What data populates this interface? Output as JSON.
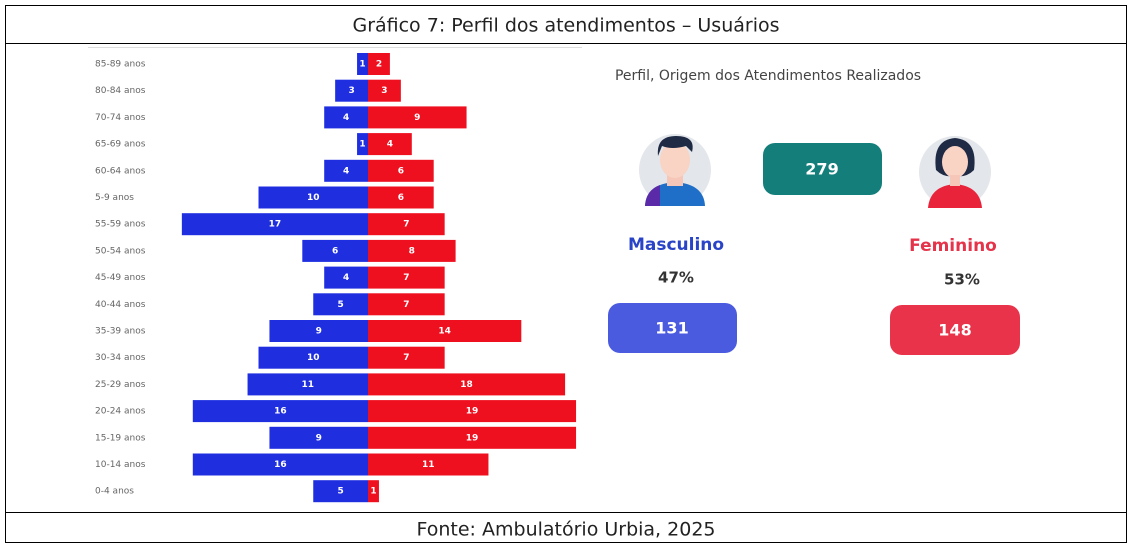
{
  "caption": "Gráfico 7: Perfil dos atendimentos – Usuários",
  "source": "Fonte: Ambulatório Urbia, 2025",
  "chart_data": {
    "type": "pyramid",
    "categories": [
      "85-89 anos",
      "80-84 anos",
      "70-74 anos",
      "65-69 anos",
      "60-64 anos",
      "5-9 anos",
      "55-59 anos",
      "50-54 anos",
      "45-49 anos",
      "40-44 anos",
      "35-39 anos",
      "30-34 anos",
      "25-29 anos",
      "20-24 anos",
      "15-19 anos",
      "10-14 anos",
      "0-4 anos"
    ],
    "series": [
      {
        "color": "#1f2fe0",
        "values": [
          1,
          3,
          4,
          1,
          4,
          10,
          17,
          6,
          4,
          5,
          9,
          10,
          11,
          16,
          9,
          16,
          5
        ]
      },
      {
        "color": "#ee0f1f",
        "values": [
          2,
          3,
          9,
          4,
          6,
          6,
          7,
          8,
          7,
          7,
          14,
          7,
          18,
          19,
          19,
          11,
          1
        ]
      }
    ]
  },
  "panel": {
    "title": "Perfil, Origem dos Atendimentos Realizados",
    "total": 279,
    "male": {
      "label": "Masculino",
      "percent": "47%",
      "count": 131
    },
    "female": {
      "label": "Feminino",
      "percent": "53%",
      "count": 148
    }
  }
}
